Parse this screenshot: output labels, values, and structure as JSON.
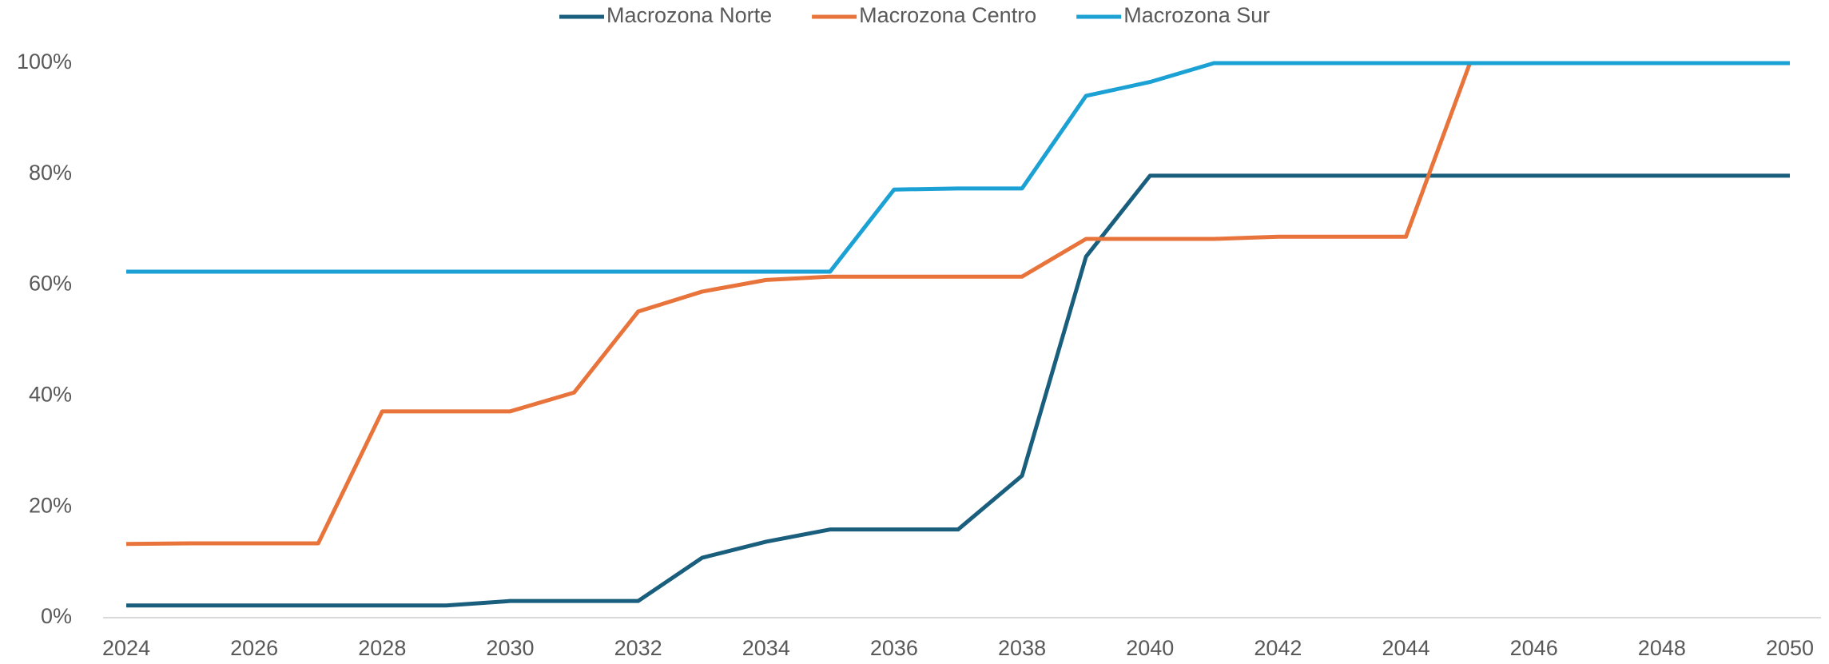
{
  "chart_data": {
    "type": "line",
    "x": [
      2024,
      2025,
      2026,
      2027,
      2028,
      2029,
      2030,
      2031,
      2032,
      2033,
      2034,
      2035,
      2036,
      2037,
      2038,
      2039,
      2040,
      2041,
      2042,
      2043,
      2044,
      2045,
      2046,
      2047,
      2048,
      2049,
      2050
    ],
    "series": [
      {
        "name": "Macrozona Norte",
        "color": "#1a5e7e",
        "values": [
          2.2,
          2.2,
          2.2,
          2.2,
          2.2,
          2.2,
          3,
          3,
          3,
          10.8,
          13.7,
          15.9,
          15.9,
          15.9,
          25.6,
          65.1,
          79.7,
          79.7,
          79.7,
          79.7,
          79.7,
          79.7,
          79.7,
          79.7,
          79.7,
          79.7,
          79.7
        ]
      },
      {
        "name": "Macrozona Centro",
        "color": "#e8743b",
        "values": [
          13.3,
          13.4,
          13.4,
          13.4,
          37.2,
          37.2,
          37.2,
          40.6,
          55.2,
          58.8,
          60.9,
          61.5,
          61.5,
          61.5,
          61.5,
          68.3,
          68.3,
          68.3,
          68.7,
          68.7,
          68.7,
          100,
          100,
          100,
          100,
          100,
          100
        ]
      },
      {
        "name": "Macrozona Sur",
        "color": "#1ba1d3",
        "values": [
          62.4,
          62.4,
          62.4,
          62.4,
          62.4,
          62.4,
          62.4,
          62.4,
          62.4,
          62.4,
          62.4,
          62.4,
          77.2,
          77.4,
          77.4,
          94.1,
          96.6,
          100,
          100,
          100,
          100,
          100,
          100,
          100,
          100,
          100,
          100
        ]
      }
    ],
    "xlim": [
      2024,
      2050
    ],
    "xticks": [
      2024,
      2026,
      2028,
      2030,
      2032,
      2034,
      2036,
      2038,
      2040,
      2042,
      2044,
      2046,
      2048,
      2050
    ],
    "ylim": [
      0,
      100
    ],
    "yticks": [
      {
        "value": 0,
        "label": "0%"
      },
      {
        "value": 20,
        "label": "20%"
      },
      {
        "value": 40,
        "label": "40%"
      },
      {
        "value": 60,
        "label": "60%"
      },
      {
        "value": 80,
        "label": "80%"
      },
      {
        "value": 100,
        "label": "100%"
      }
    ],
    "grid": false,
    "legend": "top"
  }
}
